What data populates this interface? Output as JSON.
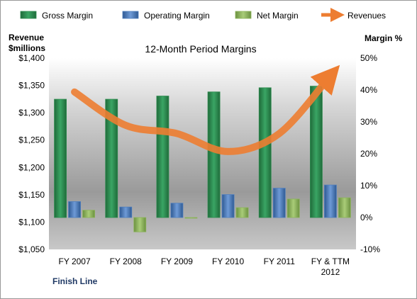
{
  "chart_data": {
    "type": "bar",
    "title": "12-Month Period Margins",
    "left_axis_title_line1": "Revenue",
    "left_axis_title_line2": "$millions",
    "right_axis_title": "Margin %",
    "footer": "Finish Line",
    "categories": [
      [
        "FY 2007"
      ],
      [
        "FY 2008"
      ],
      [
        "FY 2009"
      ],
      [
        "FY 2010"
      ],
      [
        "FY 2011"
      ],
      [
        "FY & TTM",
        "2012"
      ]
    ],
    "left_axis": {
      "min": 1050,
      "max": 1400,
      "step": 50,
      "tick_labels": [
        "$1,050",
        "$1,100",
        "$1,150",
        "$1,200",
        "$1,250",
        "$1,300",
        "$1,350",
        "$1,400"
      ]
    },
    "right_axis": {
      "min": -10,
      "max": 50,
      "step": 10,
      "tick_labels": [
        "-10%",
        "0%",
        "10%",
        "20%",
        "30%",
        "40%",
        "50%"
      ]
    },
    "bar_series": [
      {
        "name": "Gross Margin",
        "color": "#2e8b4f",
        "values": [
          37.1,
          37.1,
          38.1,
          39.4,
          40.7,
          41.2
        ]
      },
      {
        "name": "Operating Margin",
        "color": "#4f7fbf",
        "values": [
          5.0,
          3.3,
          4.5,
          7.2,
          9.2,
          10.2
        ]
      },
      {
        "name": "Net Margin",
        "color": "#8db45a",
        "values": [
          2.3,
          -4.5,
          0.0,
          3.1,
          5.8,
          6.2
        ]
      }
    ],
    "line_series": {
      "name": "Revenues",
      "color": "#ed7d31",
      "values": [
        1338,
        1277,
        1262,
        1229,
        1262,
        1368
      ]
    },
    "legend_position": "top",
    "grid": false
  }
}
